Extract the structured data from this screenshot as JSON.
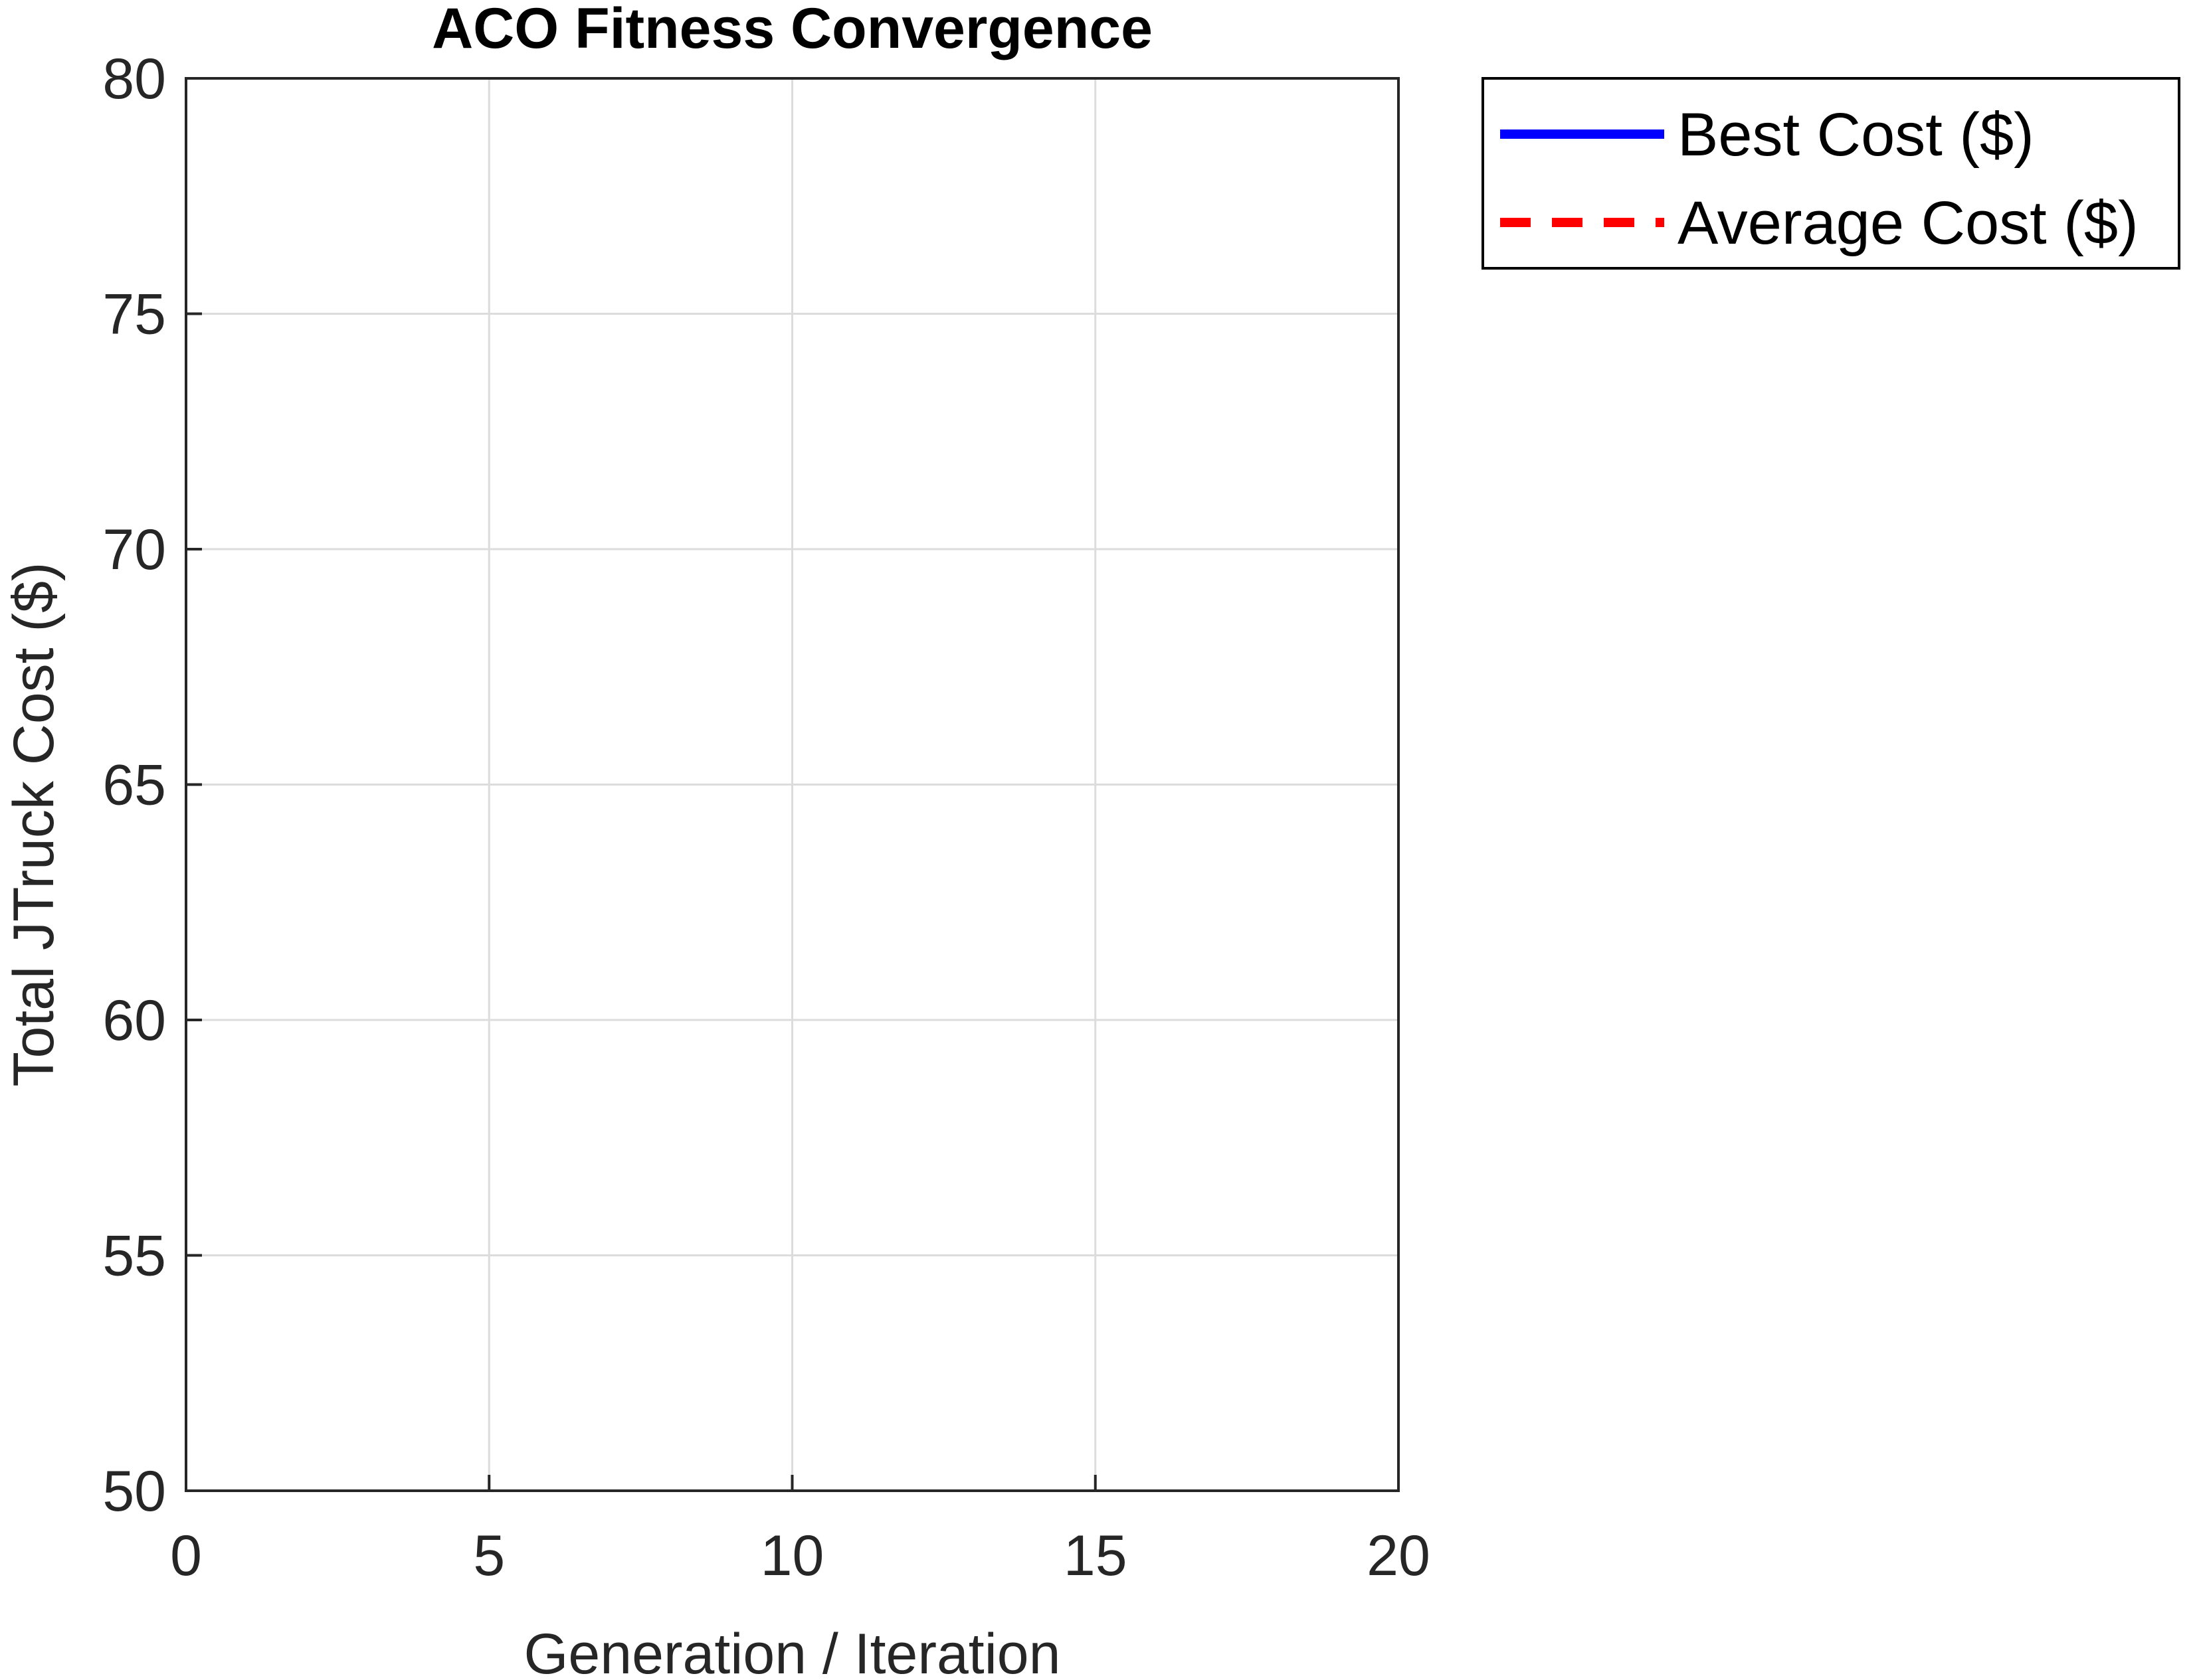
{
  "chart_data": {
    "type": "line",
    "title": "ACO Fitness Convergence",
    "xlabel": "Generation / Iteration",
    "ylabel": "Total JTruck Cost ($)",
    "xlim": [
      0,
      20
    ],
    "ylim": [
      50,
      80
    ],
    "xticks": [
      0,
      5,
      10,
      15,
      20
    ],
    "yticks": [
      50,
      55,
      60,
      65,
      70,
      75,
      80
    ],
    "grid": true,
    "legend_position": "outside top-right",
    "series": [
      {
        "name": "Best Cost ($)",
        "color": "#0000ff",
        "line_style": "solid",
        "x": [],
        "y": []
      },
      {
        "name": "Average Cost ($)",
        "color": "#ff0000",
        "line_style": "dashed",
        "x": [],
        "y": []
      }
    ]
  }
}
